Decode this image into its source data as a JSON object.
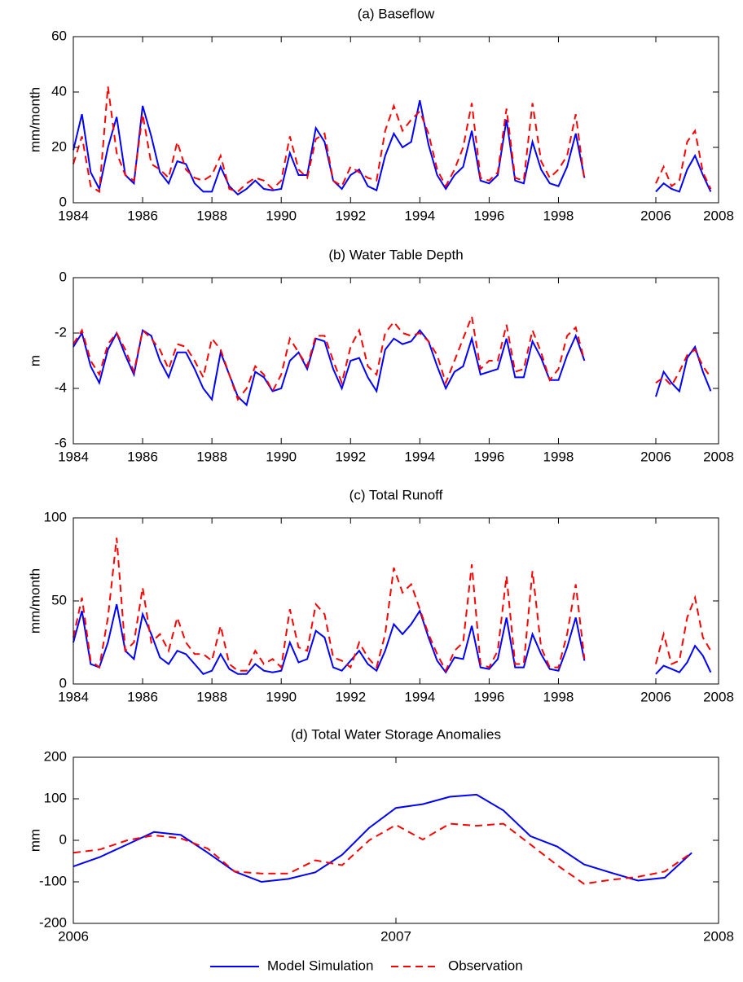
{
  "chart_data": [
    {
      "type": "line",
      "title": "(a) Baseflow",
      "y_label": "mm/month",
      "x": [
        1984,
        1984.25,
        1984.5,
        1984.75,
        1985,
        1985.25,
        1985.5,
        1985.75,
        1986,
        1986.25,
        1986.5,
        1986.75,
        1987,
        1987.25,
        1987.5,
        1987.75,
        1988,
        1988.25,
        1988.5,
        1988.75,
        1989,
        1989.25,
        1989.5,
        1989.75,
        1990,
        1990.25,
        1990.5,
        1990.75,
        1991,
        1991.25,
        1991.5,
        1991.75,
        1992,
        1992.25,
        1992.5,
        1992.75,
        1993,
        1993.25,
        1993.5,
        1993.75,
        1994,
        1994.25,
        1994.5,
        1994.75,
        1995,
        1995.25,
        1995.5,
        1995.75,
        1996,
        1996.25,
        1996.5,
        1996.75,
        1997,
        1997.25,
        1997.5,
        1997.75,
        1998,
        1998.25,
        1998.5,
        1998.75,
        2000,
        2006,
        2006.25,
        2006.5,
        2006.75,
        2007,
        2007.25,
        2007.5,
        2007.75
      ],
      "series": [
        {
          "color": "#0000ff",
          "linestyle": "solid",
          "values": [
            19,
            32,
            11,
            5,
            20,
            31,
            10,
            7,
            35,
            24,
            11,
            7,
            15,
            14,
            7,
            4,
            4,
            13,
            6,
            3,
            5,
            8,
            5,
            4.5,
            5,
            18,
            10,
            10,
            27,
            22,
            8,
            5,
            10,
            12,
            6,
            4.5,
            17,
            25,
            20,
            22,
            37,
            21,
            10,
            5,
            10,
            13,
            26,
            8,
            7,
            10,
            30,
            8,
            7,
            22,
            12,
            7,
            6,
            13,
            25,
            9,
            null,
            4,
            7,
            5,
            4,
            12,
            17,
            10,
            4
          ]
        },
        {
          "color": "#ff0000",
          "linestyle": "dashed",
          "values": [
            14,
            24,
            6,
            4,
            42,
            18,
            10,
            8,
            32,
            14,
            12,
            9,
            22,
            12,
            9,
            8,
            10,
            17,
            5,
            4,
            7,
            9,
            8,
            5,
            8,
            24,
            12,
            9,
            23,
            25,
            8,
            6,
            13,
            11,
            9,
            8,
            26,
            35,
            26,
            30,
            33,
            25,
            12,
            6,
            12,
            20,
            36,
            9,
            8,
            11,
            34,
            9,
            8,
            36,
            15,
            9,
            12,
            17,
            32,
            8,
            null,
            7,
            13,
            6,
            8,
            22,
            26,
            11,
            5
          ]
        }
      ],
      "xlim": [
        1984,
        2008
      ],
      "xbreak": [
        1999,
        2006
      ],
      "xticks": [
        1984,
        1986,
        1988,
        1990,
        1992,
        1994,
        1996,
        1998,
        2006,
        2008
      ],
      "ylim": [
        0,
        60
      ],
      "yticks": [
        0,
        20,
        40,
        60
      ]
    },
    {
      "type": "line",
      "title": "(b) Water Table Depth",
      "y_label": "m",
      "x": [
        1984,
        1984.25,
        1984.5,
        1984.75,
        1985,
        1985.25,
        1985.5,
        1985.75,
        1986,
        1986.25,
        1986.5,
        1986.75,
        1987,
        1987.25,
        1987.5,
        1987.75,
        1988,
        1988.25,
        1988.5,
        1988.75,
        1989,
        1989.25,
        1989.5,
        1989.75,
        1990,
        1990.25,
        1990.5,
        1990.75,
        1991,
        1991.25,
        1991.5,
        1991.75,
        1992,
        1992.25,
        1992.5,
        1992.75,
        1993,
        1993.25,
        1993.5,
        1993.75,
        1994,
        1994.25,
        1994.5,
        1994.75,
        1995,
        1995.25,
        1995.5,
        1995.75,
        1996,
        1996.25,
        1996.5,
        1996.75,
        1997,
        1997.25,
        1997.5,
        1997.75,
        1998,
        1998.25,
        1998.5,
        1998.75,
        2000,
        2006,
        2006.25,
        2006.5,
        2006.75,
        2007,
        2007.25,
        2007.5,
        2007.75
      ],
      "series": [
        {
          "color": "#0000ff",
          "linestyle": "solid",
          "values": [
            -2.5,
            -2,
            -3.2,
            -3.8,
            -2.6,
            -2,
            -2.8,
            -3.5,
            -1.9,
            -2.1,
            -3.0,
            -3.6,
            -2.7,
            -2.7,
            -3.3,
            -4.0,
            -4.4,
            -2.7,
            -3.5,
            -4.3,
            -4.6,
            -3.4,
            -3.6,
            -4.1,
            -4.0,
            -3.0,
            -2.7,
            -3.3,
            -2.2,
            -2.3,
            -3.3,
            -4.0,
            -3.0,
            -2.9,
            -3.6,
            -4.1,
            -2.6,
            -2.2,
            -2.4,
            -2.3,
            -1.9,
            -2.3,
            -3.2,
            -4.0,
            -3.4,
            -3.2,
            -2.2,
            -3.5,
            -3.4,
            -3.3,
            -2.2,
            -3.6,
            -3.6,
            -2.3,
            -2.9,
            -3.7,
            -3.7,
            -2.8,
            -2.1,
            -3.0,
            null,
            -4.3,
            -3.4,
            -3.8,
            -4.1,
            -2.9,
            -2.5,
            -3.4,
            -4.1
          ]
        },
        {
          "color": "#ff0000",
          "linestyle": "dashed",
          "values": [
            -2.4,
            -1.9,
            -3.0,
            -3.5,
            -2.4,
            -2.0,
            -2.6,
            -3.4,
            -1.9,
            -2.2,
            -2.6,
            -3.3,
            -2.4,
            -2.5,
            -3.0,
            -3.6,
            -2.2,
            -2.6,
            -3.5,
            -4.4,
            -4.0,
            -3.2,
            -3.5,
            -4.1,
            -3.5,
            -2.2,
            -2.7,
            -3.2,
            -2.1,
            -2.1,
            -3.0,
            -3.8,
            -2.5,
            -1.9,
            -3.2,
            -3.5,
            -2.0,
            -1.6,
            -2.0,
            -2.1,
            -2.0,
            -2.3,
            -2.8,
            -3.8,
            -3.0,
            -2.2,
            -1.4,
            -3.3,
            -3.0,
            -3.0,
            -1.7,
            -3.4,
            -3.3,
            -1.9,
            -2.7,
            -3.7,
            -3.3,
            -2.1,
            -1.8,
            -3.0,
            null,
            -3.8,
            -3.6,
            -3.9,
            -3.4,
            -2.8,
            -2.6,
            -3.2,
            -3.6
          ]
        }
      ],
      "xlim": [
        1984,
        2008
      ],
      "xbreak": [
        1999,
        2006
      ],
      "xticks": [
        1984,
        1986,
        1988,
        1990,
        1992,
        1994,
        1996,
        1998,
        2006,
        2008
      ],
      "ylim": [
        -6,
        0
      ],
      "yticks": [
        -6,
        -4,
        -2,
        0
      ]
    },
    {
      "type": "line",
      "title": "(c) Total Runoff",
      "y_label": "mm/month",
      "x": [
        1984,
        1984.25,
        1984.5,
        1984.75,
        1985,
        1985.25,
        1985.5,
        1985.75,
        1986,
        1986.25,
        1986.5,
        1986.75,
        1987,
        1987.25,
        1987.5,
        1987.75,
        1988,
        1988.25,
        1988.5,
        1988.75,
        1989,
        1989.25,
        1989.5,
        1989.75,
        1990,
        1990.25,
        1990.5,
        1990.75,
        1991,
        1991.25,
        1991.5,
        1991.75,
        1992,
        1992.25,
        1992.5,
        1992.75,
        1993,
        1993.25,
        1993.5,
        1993.75,
        1994,
        1994.25,
        1994.5,
        1994.75,
        1995,
        1995.25,
        1995.5,
        1995.75,
        1996,
        1996.25,
        1996.5,
        1996.75,
        1997,
        1997.25,
        1997.5,
        1997.75,
        1998,
        1998.25,
        1998.5,
        1998.75,
        2000,
        2006,
        2006.25,
        2006.5,
        2006.75,
        2007,
        2007.25,
        2007.5,
        2007.75
      ],
      "series": [
        {
          "color": "#0000ff",
          "linestyle": "solid",
          "values": [
            25,
            44,
            12,
            10,
            25,
            48,
            20,
            15,
            42,
            30,
            16,
            12,
            20,
            18,
            12,
            6,
            8,
            18,
            9,
            6,
            6,
            12,
            8,
            7,
            8,
            25,
            13,
            15,
            32,
            28,
            10,
            8,
            14,
            20,
            12,
            8,
            20,
            36,
            30,
            36,
            44,
            28,
            14,
            7,
            16,
            15,
            35,
            10,
            9,
            15,
            40,
            10,
            10,
            30,
            18,
            9,
            8,
            22,
            40,
            14,
            null,
            6,
            11,
            9,
            7,
            13,
            23,
            17,
            7
          ]
        },
        {
          "color": "#ff0000",
          "linestyle": "dashed",
          "values": [
            28,
            52,
            14,
            10,
            40,
            88,
            20,
            25,
            58,
            25,
            30,
            20,
            40,
            25,
            18,
            18,
            14,
            35,
            12,
            8,
            8,
            20,
            12,
            15,
            10,
            45,
            22,
            20,
            48,
            42,
            16,
            14,
            10,
            25,
            16,
            10,
            30,
            70,
            55,
            60,
            45,
            30,
            18,
            8,
            20,
            25,
            72,
            12,
            10,
            20,
            65,
            12,
            12,
            68,
            22,
            10,
            10,
            30,
            60,
            15,
            null,
            12,
            30,
            12,
            14,
            40,
            52,
            28,
            20
          ]
        }
      ],
      "xlim": [
        1984,
        2008
      ],
      "xbreak": [
        1999,
        2006
      ],
      "xticks": [
        1984,
        1986,
        1988,
        1990,
        1992,
        1994,
        1996,
        1998,
        2006,
        2008
      ],
      "ylim": [
        0,
        100
      ],
      "yticks": [
        0,
        50,
        100
      ]
    },
    {
      "type": "line",
      "title": "(d) Total Water Storage Anomalies",
      "y_label": "mm",
      "x": [
        2006,
        2006.083,
        2006.167,
        2006.25,
        2006.333,
        2006.417,
        2006.5,
        2006.583,
        2006.667,
        2006.75,
        2006.833,
        2006.917,
        2007,
        2007.083,
        2007.167,
        2007.25,
        2007.333,
        2007.417,
        2007.5,
        2007.583,
        2007.667,
        2007.75,
        2007.833,
        2007.917
      ],
      "series": [
        {
          "name": "Model Simulation",
          "color": "#0000ff",
          "linestyle": "solid",
          "values": [
            -63,
            -40,
            -10,
            20,
            13,
            -30,
            -75,
            -100,
            -93,
            -77,
            -35,
            30,
            78,
            87,
            105,
            110,
            72,
            10,
            -15,
            -58,
            -78,
            -97,
            -90,
            -30
          ]
        },
        {
          "name": "Observation",
          "color": "#ff0000",
          "linestyle": "dashed",
          "values": [
            -30,
            -22,
            0,
            12,
            5,
            -20,
            -75,
            -80,
            -80,
            -48,
            -60,
            0,
            37,
            2,
            40,
            35,
            40,
            -10,
            -60,
            -105,
            -95,
            -88,
            -75,
            -30
          ]
        }
      ],
      "xlim": [
        2006,
        2008
      ],
      "xticks": [
        2006,
        2007,
        2008
      ],
      "ylim": [
        -200,
        200
      ],
      "yticks": [
        -200,
        -100,
        0,
        100,
        200
      ]
    }
  ]
}
